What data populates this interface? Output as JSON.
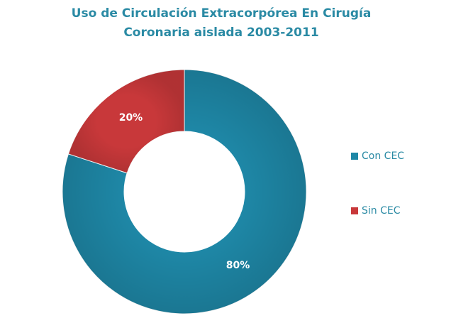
{
  "chart_data": {
    "type": "donut",
    "title": [
      "Uso de Circulación Extracorpórea En Cirugía",
      "Coronaria aislada 2003-2011"
    ],
    "categories": [
      "Con CEC",
      "Sin CEC"
    ],
    "values": [
      80,
      20
    ],
    "value_labels": [
      "80%",
      "20%"
    ],
    "colors": [
      "#1e87a6",
      "#c8383a"
    ],
    "legend": "right"
  }
}
